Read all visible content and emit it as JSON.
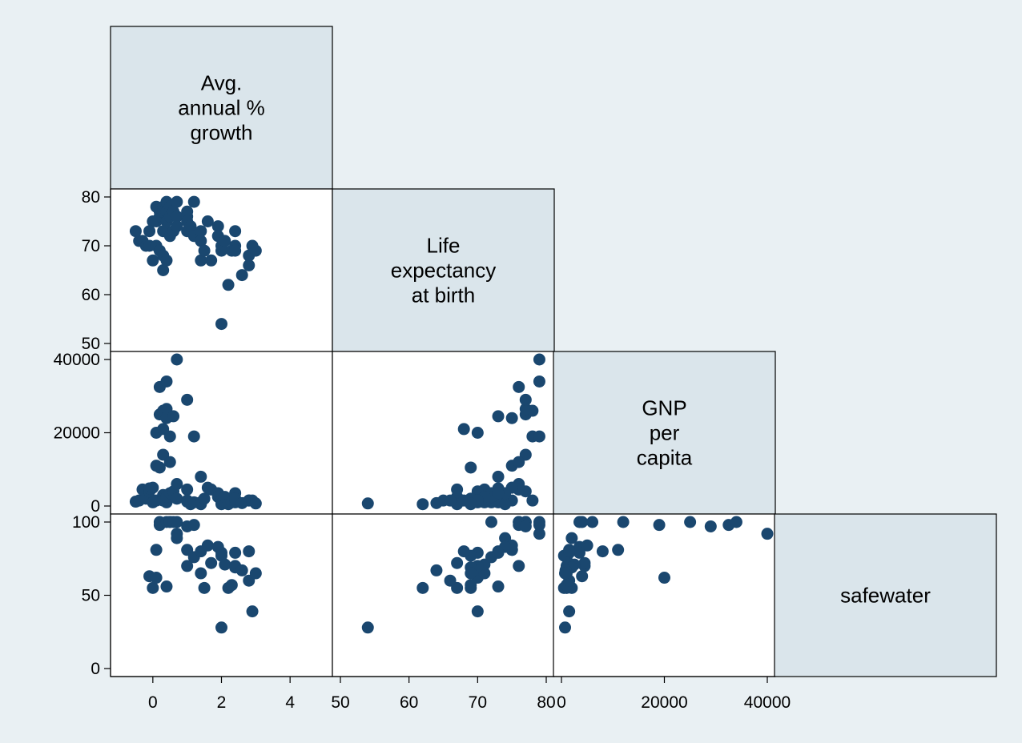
{
  "chart_data": {
    "type": "scatter",
    "subtype": "scatter-matrix-lower-half",
    "colors": {
      "background": "#e9f0f3",
      "diagonal_fill": "#dae5eb",
      "cell_fill": "#ffffff",
      "marker": "#1a476f",
      "frame": "#000000"
    },
    "variables": [
      {
        "key": "growth",
        "label_lines": [
          "Avg.",
          "annual %",
          "growth"
        ],
        "range": [
          -1,
          5
        ],
        "ticks": [
          0,
          2,
          4
        ],
        "tick_labels": [
          "0",
          "2",
          "4"
        ]
      },
      {
        "key": "lexp",
        "label_lines": [
          "Life",
          "expectancy",
          "at birth"
        ],
        "range": [
          50,
          80
        ],
        "ticks": [
          50,
          60,
          70,
          80
        ],
        "tick_labels": [
          "50",
          "60",
          "70",
          "80"
        ]
      },
      {
        "key": "gnp",
        "label_lines": [
          "GNP",
          "per",
          "capita"
        ],
        "range": [
          0,
          40000
        ],
        "ticks": [
          0,
          20000,
          40000
        ],
        "tick_labels": [
          "0",
          "20000",
          "40000"
        ]
      },
      {
        "key": "safewater",
        "label_lines": [
          "safewater"
        ],
        "range": [
          0,
          100
        ],
        "ticks": [
          0,
          50,
          100
        ],
        "tick_labels": [
          "0",
          "50",
          "100"
        ]
      }
    ],
    "observations": {
      "columns": [
        "growth",
        "lexp",
        "gnp",
        "safewater"
      ],
      "rows": [
        [
          -0.5,
          73,
          1200,
          null
        ],
        [
          -0.4,
          71,
          1500,
          null
        ],
        [
          -0.3,
          71,
          4500,
          null
        ],
        [
          -0.2,
          70,
          2000,
          null
        ],
        [
          -0.1,
          70,
          4000,
          63
        ],
        [
          -0.1,
          73,
          4800,
          null
        ],
        [
          0.0,
          67,
          1000,
          55
        ],
        [
          0.0,
          75,
          5000,
          null
        ],
        [
          0.1,
          70,
          20000,
          62
        ],
        [
          0.1,
          75,
          11000,
          81
        ],
        [
          0.1,
          78,
          1500,
          null
        ],
        [
          0.2,
          69,
          10500,
          null
        ],
        [
          0.2,
          76,
          32500,
          98
        ],
        [
          0.2,
          77,
          25000,
          100
        ],
        [
          0.3,
          73,
          3000,
          null
        ],
        [
          0.3,
          78,
          26000,
          null
        ],
        [
          0.3,
          65,
          1500,
          null
        ],
        [
          0.3,
          68,
          21000,
          null
        ],
        [
          0.3,
          77,
          14000,
          null
        ],
        [
          0.4,
          79,
          34000,
          100
        ],
        [
          0.4,
          73,
          1000,
          56
        ],
        [
          0.4,
          67,
          2500,
          null
        ],
        [
          0.4,
          77,
          26500,
          null
        ],
        [
          0.4,
          75,
          24000,
          null
        ],
        [
          0.5,
          72,
          3500,
          100
        ],
        [
          0.5,
          76,
          12000,
          100
        ],
        [
          0.5,
          78,
          19000,
          null
        ],
        [
          0.6,
          77,
          4000,
          100
        ],
        [
          0.6,
          73,
          24500,
          null
        ],
        [
          0.7,
          79,
          40000,
          92
        ],
        [
          0.7,
          76,
          6000,
          100
        ],
        [
          0.7,
          74,
          2000,
          89
        ],
        [
          1.0,
          77,
          29000,
          97
        ],
        [
          1.0,
          76,
          4500,
          70
        ],
        [
          1.0,
          75,
          1500,
          81
        ],
        [
          1.0,
          73,
          1200,
          null
        ],
        [
          1.1,
          74,
          500,
          null
        ],
        [
          1.2,
          79,
          19000,
          98
        ],
        [
          1.2,
          72,
          1000,
          76
        ],
        [
          1.4,
          73,
          8000,
          80
        ],
        [
          1.4,
          71,
          1000,
          65
        ],
        [
          1.4,
          67,
          500,
          null
        ],
        [
          1.5,
          69,
          2000,
          55
        ],
        [
          1.6,
          75,
          5000,
          84
        ],
        [
          1.7,
          67,
          4500,
          72
        ],
        [
          1.9,
          74,
          3500,
          83
        ],
        [
          1.9,
          72,
          2500,
          null
        ],
        [
          2.0,
          70,
          1500,
          79
        ],
        [
          2.0,
          69,
          500,
          77
        ],
        [
          2.0,
          54,
          700,
          28
        ],
        [
          2.1,
          71,
          2500,
          71
        ],
        [
          2.2,
          62,
          500,
          55
        ],
        [
          2.3,
          69,
          1000,
          57
        ],
        [
          2.4,
          73,
          3500,
          79
        ],
        [
          2.4,
          70,
          1000,
          70
        ],
        [
          2.4,
          69,
          2000,
          69
        ],
        [
          2.6,
          64,
          800,
          67
        ],
        [
          2.8,
          68,
          1500,
          80
        ],
        [
          2.8,
          66,
          1500,
          60
        ],
        [
          2.9,
          70,
          1500,
          39
        ],
        [
          3.0,
          69,
          700,
          65
        ]
      ]
    }
  }
}
